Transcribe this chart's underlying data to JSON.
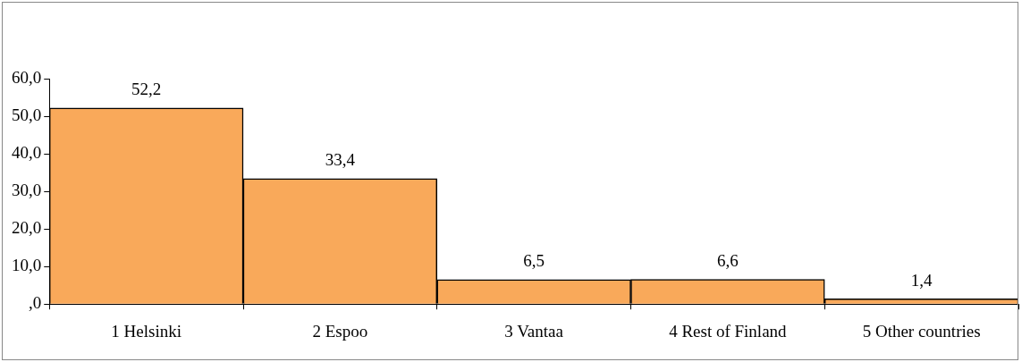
{
  "chart_data": {
    "type": "bar",
    "categories": [
      "1 Helsinki",
      "2 Espoo",
      "3 Vantaa",
      "4 Rest of Finland",
      "5 Other countries"
    ],
    "values": [
      52.2,
      33.4,
      6.5,
      6.6,
      1.4
    ],
    "value_labels": [
      "52,2",
      "33,4",
      "6,5",
      "6,6",
      "1,4"
    ],
    "color": "#f9a95a",
    "ylim": [
      0,
      60
    ],
    "yticks": [
      {
        "value": 0,
        "label": ",0"
      },
      {
        "value": 10,
        "label": "10,0"
      },
      {
        "value": 20,
        "label": "20,0"
      },
      {
        "value": 30,
        "label": "30,0"
      },
      {
        "value": 40,
        "label": "40,0"
      },
      {
        "value": 50,
        "label": "50,0"
      },
      {
        "value": 60,
        "label": "60,0"
      }
    ],
    "grid": false,
    "legend": false
  }
}
